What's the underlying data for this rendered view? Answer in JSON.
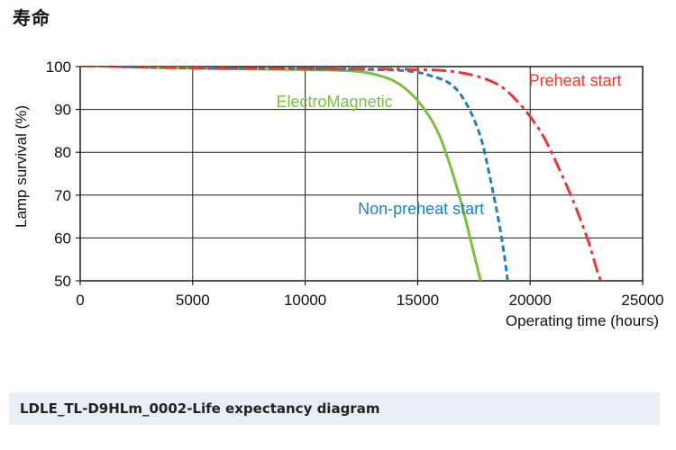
{
  "heading": "寿命",
  "caption": "LDLE_TL-D9HLm_0002-Life expectancy diagram",
  "chart_data": {
    "type": "line",
    "xlabel": "Operating time (hours)",
    "ylabel": "Lamp survival (%)",
    "xlim": [
      0,
      25000
    ],
    "ylim": [
      50,
      100
    ],
    "x_ticks": [
      0,
      5000,
      10000,
      15000,
      20000,
      25000
    ],
    "y_ticks": [
      50,
      60,
      70,
      80,
      90,
      100
    ],
    "grid": true,
    "series": [
      {
        "name": "ElectroMagnetic",
        "color": "#7cbf3a",
        "dash": "solid",
        "points": [
          [
            0,
            100.2
          ],
          [
            5000,
            99.6
          ],
          [
            10000,
            99.3
          ],
          [
            12000,
            99.0
          ],
          [
            13000,
            98.3
          ],
          [
            14000,
            96.5
          ],
          [
            14800,
            93.2
          ],
          [
            15500,
            88.5
          ],
          [
            16000,
            83.5
          ],
          [
            16500,
            76.0
          ],
          [
            17000,
            67.0
          ],
          [
            17400,
            58.5
          ],
          [
            17800,
            50.0
          ]
        ]
      },
      {
        "name": "Non-preheat start",
        "color": "#1f7fc4",
        "dash": "dash",
        "points": [
          [
            0,
            100.2
          ],
          [
            5000,
            99.7
          ],
          [
            10000,
            99.5
          ],
          [
            13000,
            99.3
          ],
          [
            14500,
            99.0
          ],
          [
            15500,
            98.0
          ],
          [
            16500,
            95.8
          ],
          [
            17200,
            91.0
          ],
          [
            17800,
            83.5
          ],
          [
            18200,
            74.5
          ],
          [
            18600,
            64.0
          ],
          [
            18850,
            56.0
          ],
          [
            19000,
            50.0
          ]
        ]
      },
      {
        "name": "Preheat start",
        "color": "#e8392e",
        "dash": "dashdot",
        "points": [
          [
            0,
            100.2
          ],
          [
            5000,
            99.7
          ],
          [
            10000,
            99.5
          ],
          [
            15000,
            99.3
          ],
          [
            17000,
            98.5
          ],
          [
            18500,
            96.0
          ],
          [
            19500,
            91.5
          ],
          [
            20500,
            84.5
          ],
          [
            21300,
            76.0
          ],
          [
            22000,
            67.5
          ],
          [
            22600,
            59.0
          ],
          [
            23000,
            52.0
          ],
          [
            23200,
            49.5
          ]
        ]
      }
    ],
    "annotations": [
      {
        "text": "ElectroMagnetic",
        "color": "#7cbf3a",
        "x": 11300,
        "y": 90.5
      },
      {
        "text": "Non-preheat start",
        "color": "#1f7fc4",
        "x": 15150,
        "y": 65.5
      },
      {
        "text": "Preheat start",
        "color": "#e8392e",
        "x": 22000,
        "y": 95.5
      }
    ]
  }
}
